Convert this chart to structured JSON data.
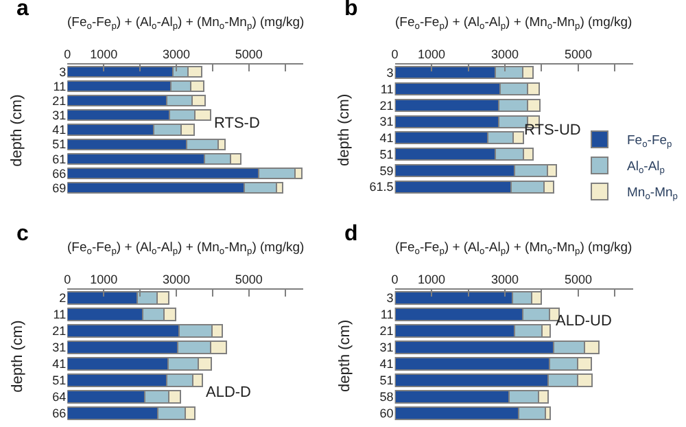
{
  "chart_data": [
    {
      "type": "bar",
      "title": "a",
      "xlabel": "(Fe$_{o}$-Fe$_{p}$) + (Al$_{o}$-Al$_{p}$) + (Mn$_{o}$-Mn$_{p}$) (mg/kg)",
      "ylabel": "depth (cm)",
      "orientation": "horizontal",
      "stacked": true,
      "annotations": [
        "RTS-D"
      ],
      "categories": [
        "3",
        "11",
        "21",
        "31",
        "41",
        "51",
        "61",
        "66",
        "69"
      ],
      "series": [
        {
          "color": "#1f4e9c",
          "values": [
            2900,
            2850,
            2740,
            2820,
            2380,
            3290,
            3770,
            5270,
            4870
          ]
        },
        {
          "color": "#9dc3d0",
          "values": [
            420,
            540,
            690,
            690,
            750,
            870,
            730,
            1000,
            900
          ]
        },
        {
          "color": "#f3eccb",
          "values": [
            390,
            370,
            370,
            440,
            370,
            190,
            280,
            190,
            160
          ]
        }
      ],
      "xlim": [
        0,
        6500
      ],
      "xticks": [
        0,
        1000,
        {
          "value": 2000,
          "label": null
        },
        3000,
        {
          "value": 4000,
          "label": null
        },
        5000,
        {
          "value": 6000,
          "label": null
        }
      ]
    },
    {
      "type": "bar",
      "title": "b",
      "xlabel": "(Fe$_{o}$-Fe$_{p}$) + (Al$_{o}$-Al$_{p}$) + (Mn$_{o}$-Mn$_{p}$) (mg/kg)",
      "ylabel": "depth (cm)",
      "orientation": "horizontal",
      "stacked": true,
      "annotations": [
        "RTS-UD"
      ],
      "legend": "bottom right",
      "categories": [
        "3",
        "11",
        "21",
        "31",
        "41",
        "51",
        "59",
        "61.5"
      ],
      "series": [
        {
          "name": "Fe$_{o}$-Fe$_{p}$",
          "color": "#1f4e9c",
          "values": [
            2740,
            2870,
            2830,
            2830,
            2540,
            2740,
            3270,
            3170
          ]
        },
        {
          "name": "Al$_{o}$-Al$_{p}$",
          "color": "#9dc3d0",
          "values": [
            750,
            750,
            790,
            790,
            690,
            760,
            880,
            900
          ]
        },
        {
          "name": "Mn$_{o}$-Mn$_{p}$",
          "color": "#f3eccb",
          "values": [
            270,
            310,
            330,
            310,
            280,
            270,
            260,
            250
          ]
        }
      ],
      "xlim": [
        0,
        6500
      ],
      "xticks": [
        0,
        1000,
        {
          "value": 2000,
          "label": null
        },
        3000,
        {
          "value": 4000,
          "label": null
        },
        5000,
        {
          "value": 6000,
          "label": null
        }
      ]
    },
    {
      "type": "bar",
      "title": "c",
      "xlabel": "(Fe$_{o}$-Fe$_{p}$) + (Al$_{o}$-Al$_{p}$) + (Mn$_{o}$-Mn$_{p}$) (mg/kg)",
      "ylabel": "depth (cm)",
      "orientation": "horizontal",
      "stacked": true,
      "annotations": [
        "ALD-D"
      ],
      "categories": [
        "2",
        "11",
        "21",
        "31",
        "41",
        "51",
        "64",
        "66"
      ],
      "series": [
        {
          "color": "#1f4e9c",
          "values": [
            1930,
            2070,
            3070,
            3040,
            2780,
            2740,
            2130,
            2490
          ]
        },
        {
          "color": "#9dc3d0",
          "values": [
            550,
            600,
            910,
            900,
            830,
            710,
            670,
            750
          ]
        },
        {
          "color": "#f3eccb",
          "values": [
            320,
            320,
            280,
            450,
            350,
            270,
            320,
            270
          ]
        }
      ],
      "xlim": [
        0,
        6500
      ],
      "xticks": [
        0,
        1000,
        {
          "value": 2000,
          "label": null
        },
        3000,
        {
          "value": 4000,
          "label": null
        },
        5000,
        {
          "value": 6000,
          "label": null
        }
      ]
    },
    {
      "type": "bar",
      "title": "d",
      "xlabel": "(Fe$_{o}$-Fe$_{p}$) + (Al$_{o}$-Al$_{p}$) + (Mn$_{o}$-Mn$_{p}$) (mg/kg)",
      "ylabel": "depth (cm)",
      "orientation": "horizontal",
      "stacked": true,
      "annotations": [
        "ALD-UD"
      ],
      "categories": [
        "3",
        "11",
        "21",
        "31",
        "41",
        "51",
        "58",
        "60"
      ],
      "series": [
        {
          "color": "#1f4e9c",
          "values": [
            3210,
            3480,
            3270,
            4330,
            4220,
            4180,
            3120,
            3380
          ]
        },
        {
          "color": "#9dc3d0",
          "values": [
            520,
            730,
            740,
            840,
            770,
            810,
            790,
            730
          ]
        },
        {
          "color": "#f3eccb",
          "values": [
            270,
            270,
            230,
            390,
            360,
            390,
            270,
            130
          ]
        }
      ],
      "xlim": [
        0,
        6500
      ],
      "xticks": [
        0,
        1000,
        {
          "value": 2000,
          "label": null
        },
        3000,
        {
          "value": 4000,
          "label": null
        },
        5000,
        {
          "value": 6000,
          "label": null
        }
      ]
    }
  ]
}
